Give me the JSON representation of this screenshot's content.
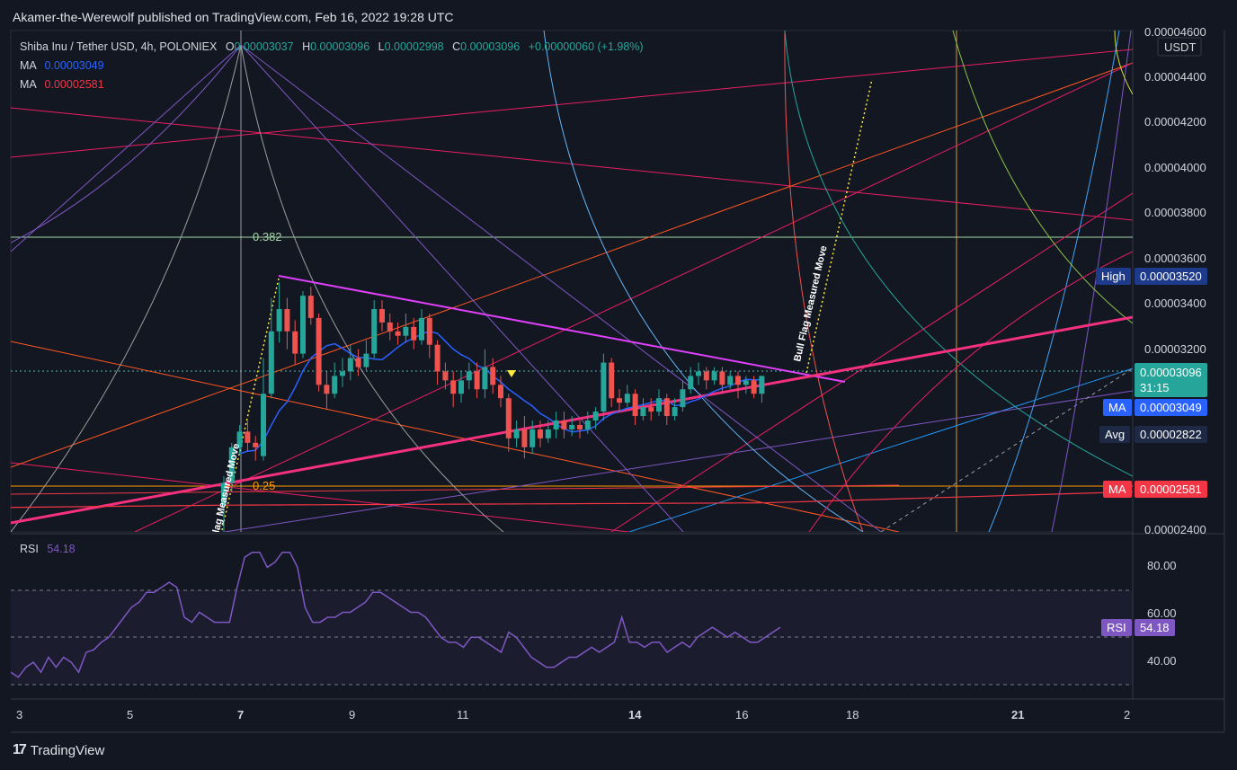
{
  "header": {
    "published": "Akamer-the-Werewolf published on TradingView.com, Feb 16, 2022 19:28 UTC"
  },
  "legend": {
    "symbol": "Shiba Inu / Tether USD, 4h, POLONIEX",
    "o_label": "O",
    "o": "0.00003037",
    "h_label": "H",
    "h": "0.00003096",
    "l_label": "L",
    "l": "0.00002998",
    "c_label": "C",
    "c": "0.00003096",
    "change": "+0.00000060 (+1.98%)",
    "ma1_label": "MA",
    "ma1": "0.00003049",
    "ma2_label": "MA",
    "ma2": "0.00002581"
  },
  "price_axis": {
    "currency": "USDT",
    "ticks": [
      "0.00004600",
      "0.00004400",
      "0.00004200",
      "0.00004000",
      "0.00003800",
      "0.00003600",
      "0.00003400",
      "0.00003200",
      "0.00002400"
    ]
  },
  "price_tags": {
    "high_label": "High",
    "high": "0.00003520",
    "last": "0.00003096",
    "countdown": "31:15",
    "ma1_label": "MA",
    "ma1": "0.00003049",
    "avg_label": "Avg",
    "avg": "0.00002822",
    "ma2_label": "MA",
    "ma2": "0.00002581"
  },
  "fib_labels": {
    "f382": "0.382",
    "f25": "0.25"
  },
  "annotations": {
    "bull_flag_1": "Bull Flag Measured Move",
    "bull_flag_2": "Flag Measured Move"
  },
  "rsi": {
    "label": "RSI",
    "value": "54.18",
    "ticks": [
      "80.00",
      "60.00",
      "40.00"
    ],
    "tag_label": "RSI",
    "tag_value": "54.18"
  },
  "time_axis": {
    "ticks": [
      "3",
      "5",
      "7",
      "9",
      "11",
      "14",
      "16",
      "18",
      "21",
      "2"
    ]
  },
  "footer": {
    "brand": "TradingView"
  },
  "colors": {
    "up": "#26a69a",
    "down": "#ef5350",
    "ma1": "#2962ff",
    "ma2": "#f23645",
    "triangle_top": "#e040fb",
    "triangle_bottom": "#f5317f",
    "rsi": "#7e57c2"
  },
  "chart_data": {
    "type": "candlestick",
    "timeframe": "4h",
    "ylim": [
      2.4e-05,
      4.65e-05
    ],
    "candles": [
      {
        "o": 2.52e-05,
        "c": 2.62e-05,
        "h": 2.65e-05,
        "l": 2.4e-05
      },
      {
        "o": 2.62e-05,
        "c": 2.78e-05,
        "h": 2.8e-05,
        "l": 2.58e-05
      },
      {
        "o": 2.78e-05,
        "c": 2.85e-05,
        "h": 2.88e-05,
        "l": 2.75e-05
      },
      {
        "o": 2.85e-05,
        "c": 2.8e-05,
        "h": 2.9e-05,
        "l": 2.76e-05
      },
      {
        "o": 2.8e-05,
        "c": 2.78e-05,
        "h": 2.83e-05,
        "l": 2.72e-05
      },
      {
        "o": 2.74e-05,
        "c": 3.02e-05,
        "h": 3.18e-05,
        "l": 2.72e-05
      },
      {
        "o": 3.02e-05,
        "c": 3.3e-05,
        "h": 3.45e-05,
        "l": 3e-05
      },
      {
        "o": 3.3e-05,
        "c": 3.4e-05,
        "h": 3.52e-05,
        "l": 3.25e-05
      },
      {
        "o": 3.4e-05,
        "c": 3.3e-05,
        "h": 3.45e-05,
        "l": 3.22e-05
      },
      {
        "o": 3.3e-05,
        "c": 3.2e-05,
        "h": 3.35e-05,
        "l": 3.15e-05
      },
      {
        "o": 3.2e-05,
        "c": 3.46e-05,
        "h": 3.48e-05,
        "l": 3.18e-05
      },
      {
        "o": 3.46e-05,
        "c": 3.36e-05,
        "h": 3.5e-05,
        "l": 3.33e-05
      },
      {
        "o": 3.36e-05,
        "c": 3.06e-05,
        "h": 3.38e-05,
        "l": 3.03e-05
      },
      {
        "o": 3.06e-05,
        "c": 3.02e-05,
        "h": 3.12e-05,
        "l": 2.95e-05
      },
      {
        "o": 3.02e-05,
        "c": 3.1e-05,
        "h": 3.16e-05,
        "l": 3e-05
      },
      {
        "o": 3.1e-05,
        "c": 3.12e-05,
        "h": 3.18e-05,
        "l": 3.05e-05
      },
      {
        "o": 3.12e-05,
        "c": 3.18e-05,
        "h": 3.24e-05,
        "l": 3.08e-05
      },
      {
        "o": 3.18e-05,
        "c": 3.14e-05,
        "h": 3.22e-05,
        "l": 3.1e-05
      },
      {
        "o": 3.14e-05,
        "c": 3.2e-05,
        "h": 3.26e-05,
        "l": 3.12e-05
      },
      {
        "o": 3.2e-05,
        "c": 3.4e-05,
        "h": 3.44e-05,
        "l": 3.18e-05
      },
      {
        "o": 3.4e-05,
        "c": 3.34e-05,
        "h": 3.44e-05,
        "l": 3.3e-05
      },
      {
        "o": 3.34e-05,
        "c": 3.3e-05,
        "h": 3.38e-05,
        "l": 3.26e-05
      },
      {
        "o": 3.3e-05,
        "c": 3.28e-05,
        "h": 3.34e-05,
        "l": 3.24e-05
      },
      {
        "o": 3.28e-05,
        "c": 3.32e-05,
        "h": 3.38e-05,
        "l": 3.25e-05
      },
      {
        "o": 3.32e-05,
        "c": 3.26e-05,
        "h": 3.36e-05,
        "l": 3.22e-05
      },
      {
        "o": 3.26e-05,
        "c": 3.36e-05,
        "h": 3.4e-05,
        "l": 3.24e-05
      },
      {
        "o": 3.36e-05,
        "c": 3.24e-05,
        "h": 3.38e-05,
        "l": 3.18e-05
      },
      {
        "o": 3.24e-05,
        "c": 3.12e-05,
        "h": 3.26e-05,
        "l": 3.06e-05
      },
      {
        "o": 3.12e-05,
        "c": 3.08e-05,
        "h": 3.16e-05,
        "l": 3.04e-05
      },
      {
        "o": 3.08e-05,
        "c": 3.02e-05,
        "h": 3.12e-05,
        "l": 2.96e-05
      },
      {
        "o": 3.02e-05,
        "c": 3.08e-05,
        "h": 3.12e-05,
        "l": 2.98e-05
      },
      {
        "o": 3.08e-05,
        "c": 3.12e-05,
        "h": 3.16e-05,
        "l": 3.04e-05
      },
      {
        "o": 3.12e-05,
        "c": 3.04e-05,
        "h": 3.16e-05,
        "l": 3e-05
      },
      {
        "o": 3.04e-05,
        "c": 3.14e-05,
        "h": 3.22e-05,
        "l": 3e-05
      },
      {
        "o": 3.14e-05,
        "c": 3.06e-05,
        "h": 3.18e-05,
        "l": 3.02e-05
      },
      {
        "o": 3.06e-05,
        "c": 3e-05,
        "h": 3.1e-05,
        "l": 2.96e-05
      },
      {
        "o": 3e-05,
        "c": 2.82e-05,
        "h": 3.02e-05,
        "l": 2.76e-05
      },
      {
        "o": 2.82e-05,
        "c": 2.86e-05,
        "h": 2.9e-05,
        "l": 2.78e-05
      },
      {
        "o": 2.86e-05,
        "c": 2.78e-05,
        "h": 2.92e-05,
        "l": 2.73e-05
      },
      {
        "o": 2.78e-05,
        "c": 2.86e-05,
        "h": 2.9e-05,
        "l": 2.75e-05
      },
      {
        "o": 2.86e-05,
        "c": 2.82e-05,
        "h": 2.9e-05,
        "l": 2.78e-05
      },
      {
        "o": 2.82e-05,
        "c": 2.86e-05,
        "h": 2.9e-05,
        "l": 2.8e-05
      },
      {
        "o": 2.86e-05,
        "c": 2.9e-05,
        "h": 2.94e-05,
        "l": 2.82e-05
      },
      {
        "o": 2.9e-05,
        "c": 2.86e-05,
        "h": 2.94e-05,
        "l": 2.82e-05
      },
      {
        "o": 2.86e-05,
        "c": 2.88e-05,
        "h": 2.92e-05,
        "l": 2.83e-05
      },
      {
        "o": 2.88e-05,
        "c": 2.86e-05,
        "h": 2.9e-05,
        "l": 2.82e-05
      },
      {
        "o": 2.86e-05,
        "c": 2.9e-05,
        "h": 2.94e-05,
        "l": 2.84e-05
      },
      {
        "o": 2.9e-05,
        "c": 2.94e-05,
        "h": 2.96e-05,
        "l": 2.86e-05
      },
      {
        "o": 2.94e-05,
        "c": 3.16e-05,
        "h": 3.2e-05,
        "l": 2.9e-05
      },
      {
        "o": 3.16e-05,
        "c": 3e-05,
        "h": 3.18e-05,
        "l": 2.96e-05
      },
      {
        "o": 3e-05,
        "c": 2.98e-05,
        "h": 3.04e-05,
        "l": 2.94e-05
      },
      {
        "o": 2.98e-05,
        "c": 3.02e-05,
        "h": 3.06e-05,
        "l": 2.96e-05
      },
      {
        "o": 3.02e-05,
        "c": 2.92e-05,
        "h": 3.04e-05,
        "l": 2.88e-05
      },
      {
        "o": 2.92e-05,
        "c": 2.96e-05,
        "h": 3e-05,
        "l": 2.9e-05
      },
      {
        "o": 2.96e-05,
        "c": 2.94e-05,
        "h": 3e-05,
        "l": 2.9e-05
      },
      {
        "o": 2.94e-05,
        "c": 3e-05,
        "h": 3.04e-05,
        "l": 2.92e-05
      },
      {
        "o": 3e-05,
        "c": 2.92e-05,
        "h": 3.02e-05,
        "l": 2.88e-05
      },
      {
        "o": 2.92e-05,
        "c": 2.96e-05,
        "h": 3e-05,
        "l": 2.9e-05
      },
      {
        "o": 2.96e-05,
        "c": 3.04e-05,
        "h": 3.08e-05,
        "l": 2.94e-05
      },
      {
        "o": 3.04e-05,
        "c": 3.1e-05,
        "h": 3.14e-05,
        "l": 3.02e-05
      },
      {
        "o": 3.1e-05,
        "c": 3.12e-05,
        "h": 3.16e-05,
        "l": 3.06e-05
      },
      {
        "o": 3.12e-05,
        "c": 3.08e-05,
        "h": 3.14e-05,
        "l": 3.04e-05
      },
      {
        "o": 3.08e-05,
        "c": 3.12e-05,
        "h": 3.14e-05,
        "l": 3.06e-05
      },
      {
        "o": 3.12e-05,
        "c": 3.06e-05,
        "h": 3.14e-05,
        "l": 3.02e-05
      },
      {
        "o": 3.06e-05,
        "c": 3.1e-05,
        "h": 3.12e-05,
        "l": 3.04e-05
      },
      {
        "o": 3.1e-05,
        "c": 3.06e-05,
        "h": 3.12e-05,
        "l": 3e-05
      },
      {
        "o": 3.06e-05,
        "c": 3.08e-05,
        "h": 3.1e-05,
        "l": 3.02e-05
      },
      {
        "o": 3.08e-05,
        "c": 3.02e-05,
        "h": 3.1e-05,
        "l": 3e-05
      },
      {
        "o": 3.02e-05,
        "c": 3.1e-05,
        "h": 3.1e-05,
        "l": 2.98e-05
      }
    ],
    "rsi_series": [
      38,
      36,
      40,
      42,
      38,
      44,
      40,
      44,
      42,
      38,
      46,
      47,
      50,
      52,
      56,
      60,
      64,
      66,
      70,
      70,
      72,
      74,
      72,
      60,
      58,
      62,
      60,
      58,
      58,
      58,
      72,
      84,
      86,
      86,
      80,
      82,
      86,
      86,
      80,
      64,
      58,
      58,
      60,
      60,
      62,
      62,
      64,
      66,
      70,
      70,
      68,
      66,
      64,
      62,
      62,
      60,
      56,
      52,
      50,
      50,
      48,
      52,
      52,
      50,
      48,
      46,
      54,
      52,
      48,
      44,
      42,
      40,
      40,
      42,
      44,
      44,
      46,
      48,
      46,
      48,
      50,
      60,
      50,
      50,
      48,
      50,
      50,
      46,
      48,
      50,
      48,
      52,
      54,
      56,
      54,
      52,
      54,
      52,
      50,
      50,
      52,
      54,
      56
    ],
    "rsi_ylim": [
      28,
      92
    ],
    "fib_levels": [
      {
        "label": "0.382",
        "price": 3.69e-05
      },
      {
        "label": "0.25",
        "price": 2.58e-05
      }
    ]
  }
}
